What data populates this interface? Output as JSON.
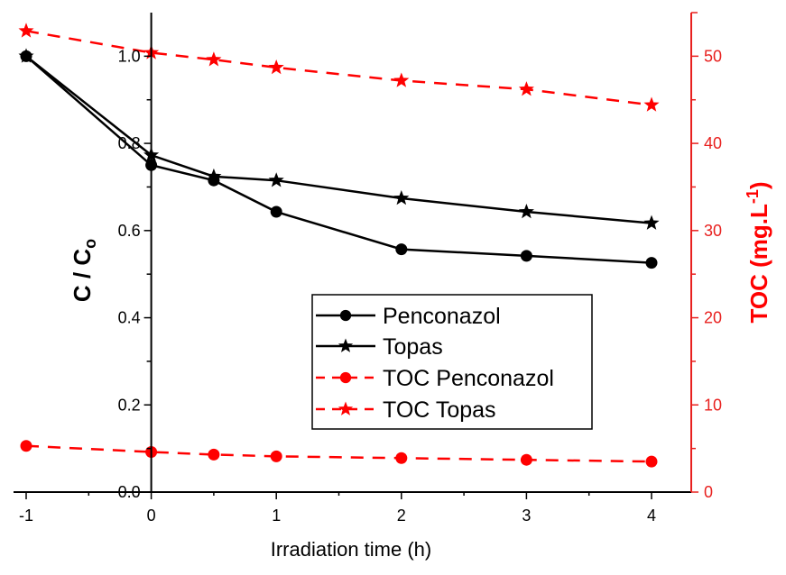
{
  "chart_data": {
    "type": "line",
    "title": "",
    "xlabel": "Irradiation time (h)",
    "ylabel": "C / Co",
    "ylabel_parts": {
      "main": "C / C",
      "subscript": "o"
    },
    "y2label": "TOC (mg.L-1)",
    "y2label_parts": {
      "main": "TOC (mg.L",
      "superscript": "-1",
      "close": ")"
    },
    "xlim": [
      -1.1,
      4.45
    ],
    "ylim": [
      0.0,
      1.1
    ],
    "y2lim": [
      0,
      55
    ],
    "x_ticks": [
      -1,
      0,
      1,
      2,
      3,
      4
    ],
    "x_tick_labels": [
      "-1",
      "0",
      "1",
      "2",
      "3",
      "4"
    ],
    "x_minor_ticks": [
      -0.5,
      0.5,
      1.5,
      2.5,
      3.5
    ],
    "y_ticks": [
      0.0,
      0.2,
      0.4,
      0.6,
      0.8,
      1.0
    ],
    "y_tick_labels": [
      "0.0",
      "0.2",
      "0.4",
      "0.6",
      "0.8",
      "1.0"
    ],
    "y_minor_ticks": [
      0.1,
      0.3,
      0.5,
      0.7,
      0.9
    ],
    "y2_ticks": [
      0,
      10,
      20,
      30,
      40,
      50
    ],
    "y2_tick_labels": [
      "0",
      "10",
      "20",
      "30",
      "40",
      "50"
    ],
    "y2_minor_ticks": [
      5,
      15,
      25,
      35,
      45
    ],
    "grid": false,
    "legend_position": "center",
    "x": [
      -1,
      0,
      0.5,
      1,
      2,
      3,
      4
    ],
    "series": [
      {
        "name": "Penconazol",
        "axis": "left",
        "marker": "circle",
        "line": "solid",
        "color": "#000000",
        "values": [
          1.0,
          0.75,
          0.715,
          0.643,
          0.557,
          0.542,
          0.526
        ]
      },
      {
        "name": "Topas",
        "axis": "left",
        "marker": "star",
        "line": "solid",
        "color": "#000000",
        "values": [
          1.0,
          0.773,
          0.724,
          0.715,
          0.674,
          0.643,
          0.617
        ]
      },
      {
        "name": "TOC Penconazol",
        "axis": "right",
        "marker": "circle",
        "line": "dashed",
        "color": "#ff0000",
        "values": [
          5.3,
          4.6,
          4.3,
          4.1,
          3.9,
          3.7,
          3.5
        ]
      },
      {
        "name": "TOC Topas",
        "axis": "right",
        "marker": "star",
        "line": "dashed",
        "color": "#ff0000",
        "values": [
          52.9,
          50.4,
          49.6,
          48.7,
          47.2,
          46.2,
          44.4
        ]
      }
    ],
    "colors": {
      "left_axis": "#000000",
      "right_axis": "#e8201e"
    }
  }
}
